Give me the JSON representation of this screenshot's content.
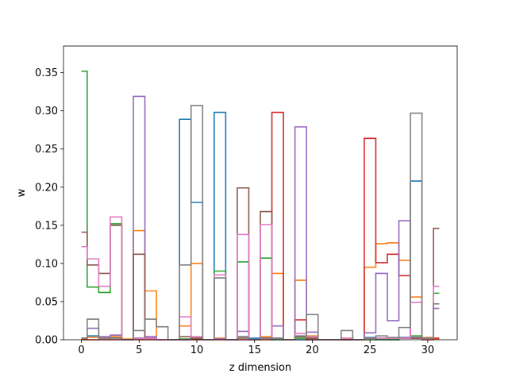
{
  "chart_data": {
    "type": "step",
    "title": "",
    "xlabel": "z dimension",
    "ylabel": "w",
    "xlim": [
      -1.55,
      32.55
    ],
    "ylim": [
      0,
      0.385
    ],
    "xticks": [
      0,
      5,
      10,
      15,
      20,
      25,
      30
    ],
    "yticks": [
      0.0,
      0.05,
      0.1,
      0.15,
      0.2,
      0.25,
      0.3,
      0.35
    ],
    "ytick_labels": [
      "0.00",
      "0.05",
      "0.10",
      "0.15",
      "0.20",
      "0.25",
      "0.30",
      "0.35"
    ],
    "grid": false,
    "step_where": "mid",
    "x": [
      0,
      1,
      2,
      3,
      4,
      5,
      6,
      7,
      8,
      9,
      10,
      11,
      12,
      13,
      14,
      15,
      16,
      17,
      18,
      19,
      20,
      21,
      22,
      23,
      24,
      25,
      26,
      27,
      28,
      29,
      30,
      31
    ],
    "series": [
      {
        "color": "#1f77b4",
        "values": [
          0.002,
          0.005,
          0.002,
          0.003,
          0,
          0.002,
          0.002,
          0,
          0,
          0.289,
          0.18,
          0,
          0.298,
          0,
          0.004,
          0.002,
          0.003,
          0,
          0,
          0,
          0,
          0,
          0,
          0,
          0,
          0.003,
          0,
          0,
          0.003,
          0.208,
          0.002,
          0.001
        ]
      },
      {
        "color": "#ff7f0e",
        "values": [
          0.001,
          0.003,
          0.002,
          0.004,
          0.001,
          0.143,
          0.064,
          0,
          0,
          0.018,
          0.1,
          0,
          0.002,
          0,
          0.003,
          0,
          0.004,
          0.087,
          0,
          0.078,
          0.005,
          0,
          0,
          0.002,
          0,
          0.095,
          0.126,
          0.127,
          0.104,
          0.056,
          0.003,
          0.001
        ]
      },
      {
        "color": "#2ca02c",
        "values": [
          0.352,
          0.069,
          0.062,
          0.152,
          0,
          0.002,
          0.002,
          0,
          0,
          0.001,
          0.001,
          0,
          0.09,
          0,
          0.102,
          0,
          0.107,
          0,
          0,
          0.002,
          0.002,
          0,
          0,
          0,
          0,
          0,
          0,
          0,
          0.002,
          0.005,
          0.002,
          0.061
        ]
      },
      {
        "color": "#d62728",
        "values": [
          0,
          0,
          0,
          0,
          0,
          0,
          0,
          0,
          0,
          0,
          0,
          0,
          0,
          0,
          0,
          0,
          0,
          0.298,
          0,
          0.026,
          0,
          0,
          0,
          0,
          0,
          0.264,
          0.101,
          0.112,
          0.084,
          0.002,
          0,
          0.002
        ]
      },
      {
        "color": "#9467bd",
        "values": [
          0.002,
          0.015,
          0.004,
          0.006,
          0,
          0.319,
          0.004,
          0,
          0,
          0,
          0.002,
          0,
          0.001,
          0,
          0.011,
          0,
          0.002,
          0.018,
          0,
          0.279,
          0.01,
          0,
          0,
          0,
          0,
          0.009,
          0.087,
          0.025,
          0.156,
          0.003,
          0.002,
          0.041
        ]
      },
      {
        "color": "#8c564b",
        "values": [
          0.141,
          0.098,
          0.087,
          0.15,
          0,
          0.112,
          0.002,
          0,
          0,
          0.004,
          0.002,
          0,
          0.081,
          0,
          0.199,
          0,
          0.168,
          0.002,
          0,
          0.004,
          0.002,
          0,
          0,
          0,
          0,
          0.002,
          0.002,
          0.002,
          0.002,
          0.002,
          0.002,
          0.146
        ]
      },
      {
        "color": "#e377c2",
        "values": [
          0.122,
          0.106,
          0.07,
          0.161,
          0,
          0.002,
          0.002,
          0,
          0,
          0.03,
          0.004,
          0,
          0.085,
          0,
          0.138,
          0,
          0.151,
          0.002,
          0,
          0.008,
          0.004,
          0,
          0,
          0.002,
          0,
          0.002,
          0.002,
          0.002,
          0.002,
          0.049,
          0.002,
          0.07
        ]
      },
      {
        "color": "#7f7f7f",
        "values": [
          0.002,
          0.027,
          0.002,
          0.002,
          0,
          0.012,
          0.027,
          0.017,
          0,
          0.098,
          0.307,
          0,
          0.081,
          0,
          0.002,
          0,
          0.002,
          0.002,
          0,
          0.005,
          0.033,
          0,
          0,
          0.012,
          0,
          0.002,
          0.005,
          0.003,
          0.016,
          0.297,
          0.002,
          0.047
        ]
      }
    ]
  }
}
